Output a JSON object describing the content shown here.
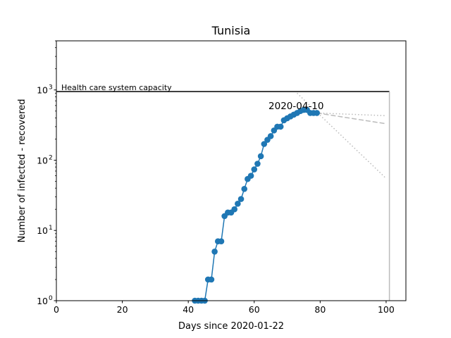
{
  "chart_data": {
    "type": "line",
    "title": "Tunisia",
    "xlabel": "Days since 2020-01-22",
    "ylabel": "Number of infected - recovered",
    "y_scale": "log",
    "xlim": [
      0,
      106
    ],
    "ylim": [
      1,
      5000
    ],
    "x_ticks": [
      0,
      20,
      40,
      60,
      80,
      100
    ],
    "x_tick_labels": [
      "0",
      "20",
      "40",
      "60",
      "80",
      "100"
    ],
    "y_ticks": [
      1,
      10,
      100,
      1000
    ],
    "y_tick_labels": [
      "10",
      "10",
      "10",
      "10"
    ],
    "y_tick_exponents": [
      "0",
      "1",
      "2",
      "3"
    ],
    "grid": false,
    "series": [
      {
        "name": "",
        "color": "#1f77b4",
        "marker": "circle",
        "x": [
          42,
          43,
          44,
          45,
          46,
          47,
          48,
          49,
          50,
          51,
          52,
          53,
          54,
          55,
          56,
          57,
          58,
          59,
          60,
          61,
          62,
          63,
          64,
          65,
          66,
          67,
          68,
          69,
          70,
          71,
          72,
          73,
          74,
          75,
          76,
          77,
          78,
          79
        ],
        "y": [
          1,
          1,
          1,
          1,
          2,
          2,
          5,
          7,
          7,
          16,
          18,
          18,
          20,
          24,
          28,
          39,
          54,
          60,
          74,
          89,
          114,
          170,
          195,
          220,
          265,
          300,
          300,
          370,
          395,
          420,
          445,
          470,
          500,
          520,
          520,
          470,
          470,
          470
        ]
      }
    ],
    "projections": [
      {
        "style": "dotted",
        "color": "#bbbbbb",
        "x": [
          79,
          100
        ],
        "y": [
          470,
          430
        ]
      },
      {
        "style": "dashed",
        "color": "#bbbbbb",
        "x": [
          79,
          100
        ],
        "y": [
          470,
          330
        ]
      },
      {
        "style": "dotted",
        "color": "#bbbbbb",
        "x": [
          73,
          100
        ],
        "y": [
          900,
          55
        ]
      }
    ],
    "capacity": {
      "value": 950,
      "x_start": 0,
      "x_end": 101,
      "label": "Health care system capacity",
      "color": "#000000"
    },
    "end_line": {
      "x": 101,
      "color": "#bbbbbb"
    },
    "annotation": {
      "text": "2020-04-10",
      "x": 74,
      "y": 520
    }
  }
}
